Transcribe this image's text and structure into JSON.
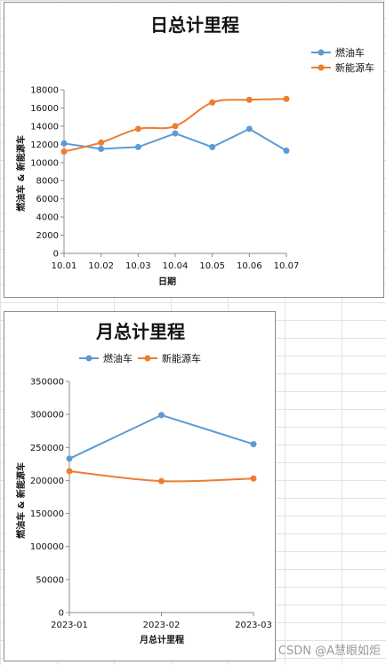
{
  "colors": {
    "fuel": "#5b9bd5",
    "ev": "#ed7d31"
  },
  "watermark": "CSDN @A慧眼如炬",
  "chart_data": [
    {
      "type": "line",
      "title": "日总计里程",
      "xlabel": "日期",
      "ylabel": "燃油车 & 新能源车",
      "categories": [
        "10.01",
        "10.02",
        "10.03",
        "10.04",
        "10.05",
        "10.06",
        "10.07"
      ],
      "ylim": [
        0,
        18000
      ],
      "yticks": [
        0,
        2000,
        4000,
        6000,
        8000,
        10000,
        12000,
        14000,
        16000,
        18000
      ],
      "legend_position": "top-right",
      "grid": false,
      "series": [
        {
          "name": "燃油车",
          "values": [
            12100,
            11500,
            11700,
            13200,
            11700,
            13700,
            11300
          ]
        },
        {
          "name": "新能源车",
          "values": [
            11200,
            12200,
            13700,
            14000,
            16600,
            16900,
            17000
          ]
        }
      ]
    },
    {
      "type": "line",
      "title": "月总计里程",
      "xlabel": "月总计里程",
      "ylabel": "燃油车 & 新能源车",
      "categories": [
        "2023-01",
        "2023-02",
        "2023-03"
      ],
      "ylim": [
        0,
        350000
      ],
      "yticks": [
        0,
        50000,
        100000,
        150000,
        200000,
        250000,
        300000,
        350000
      ],
      "legend_position": "top",
      "grid": false,
      "series": [
        {
          "name": "燃油车",
          "values": [
            233000,
            299000,
            255000
          ]
        },
        {
          "name": "新能源车",
          "values": [
            214000,
            199000,
            203000
          ]
        }
      ]
    }
  ]
}
